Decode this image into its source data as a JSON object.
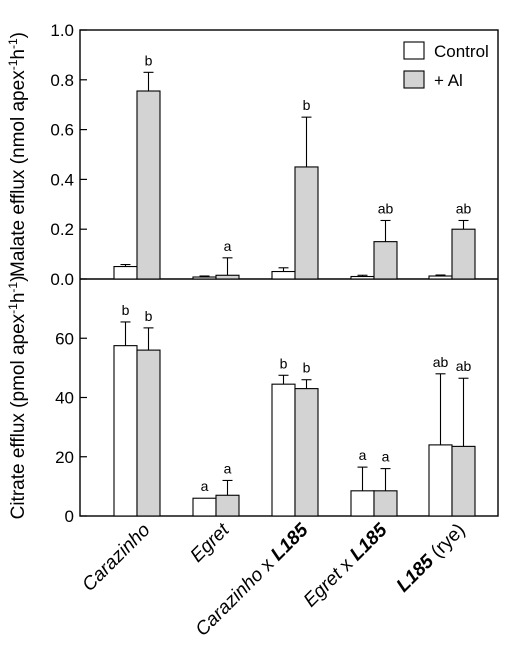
{
  "chart_data": [
    {
      "type": "bar",
      "panel": "top",
      "ylabel_text": "Malate efflux (nmol apex",
      "ylabel_unit_sup1": "-1",
      "ylabel_unit_h": "h",
      "ylabel_unit_sup2": "-1",
      "ylabel_close": ")",
      "ylim": [
        0,
        1.0
      ],
      "yticks": [
        "0.0",
        "0.2",
        "0.4",
        "0.6",
        "0.8",
        "1.0"
      ],
      "ytick_values": [
        0,
        0.2,
        0.4,
        0.6,
        0.8,
        1.0
      ],
      "categories": [
        "Carazinho",
        "Egret",
        "Carazinho x L185",
        "Egret x L185",
        "L185 (rye)"
      ],
      "series": [
        {
          "name": "Control",
          "color": "#ffffff",
          "values": [
            0.05,
            0.008,
            0.03,
            0.01,
            0.012
          ],
          "errors": [
            0.008,
            0.004,
            0.015,
            0.005,
            0.004
          ],
          "labels": [
            "",
            "",
            "",
            "",
            ""
          ]
        },
        {
          "name": "+ Al",
          "color": "#d3d3d3",
          "values": [
            0.755,
            0.015,
            0.45,
            0.15,
            0.2
          ],
          "errors": [
            0.075,
            0.07,
            0.2,
            0.085,
            0.035
          ],
          "labels": [
            "b",
            "a",
            "b",
            "ab",
            "ab"
          ]
        }
      ],
      "legend": {
        "position": "top-right",
        "entries": [
          "Control",
          "+ Al"
        ]
      }
    },
    {
      "type": "bar",
      "panel": "bottom",
      "ylabel_text": "Citrate efflux (pmol apex",
      "ylabel_unit_sup1": "-1",
      "ylabel_unit_h": "h",
      "ylabel_unit_sup2": "-1",
      "ylabel_close": ")",
      "ylim": [
        0,
        80
      ],
      "yticks": [
        "0",
        "20",
        "40",
        "60"
      ],
      "ytick_values": [
        0,
        20,
        40,
        60
      ],
      "categories": [
        "Carazinho",
        "Egret",
        "Carazinho x L185",
        "Egret x L185",
        "L185 (rye)"
      ],
      "series": [
        {
          "name": "Control",
          "color": "#ffffff",
          "values": [
            57.5,
            6,
            44.5,
            8.5,
            24
          ],
          "errors": [
            8,
            0,
            3,
            8,
            24
          ],
          "labels": [
            "b",
            "a",
            "b",
            "a",
            "ab"
          ]
        },
        {
          "name": "+ Al",
          "color": "#d3d3d3",
          "values": [
            56,
            7,
            43,
            8.5,
            23.5
          ],
          "errors": [
            7.5,
            5,
            3,
            7.5,
            23
          ],
          "labels": [
            "b",
            "a",
            "b",
            "a",
            "ab"
          ]
        }
      ]
    }
  ],
  "xaxis_labels": [
    {
      "parts": [
        {
          "text": "Carazinho",
          "style": "italic"
        }
      ]
    },
    {
      "parts": [
        {
          "text": "Egret",
          "style": "italic"
        }
      ]
    },
    {
      "parts": [
        {
          "text": "Carazinho",
          "style": "italic"
        },
        {
          "text": " x ",
          "style": "normal"
        },
        {
          "text": "L185",
          "style": "bolditalic"
        }
      ]
    },
    {
      "parts": [
        {
          "text": "Egret",
          "style": "italic"
        },
        {
          "text": " x ",
          "style": "normal"
        },
        {
          "text": "L185",
          "style": "bolditalic"
        }
      ]
    },
    {
      "parts": [
        {
          "text": "L185",
          "style": "bolditalic"
        },
        {
          "text": " (rye)",
          "style": "normal"
        }
      ]
    }
  ]
}
